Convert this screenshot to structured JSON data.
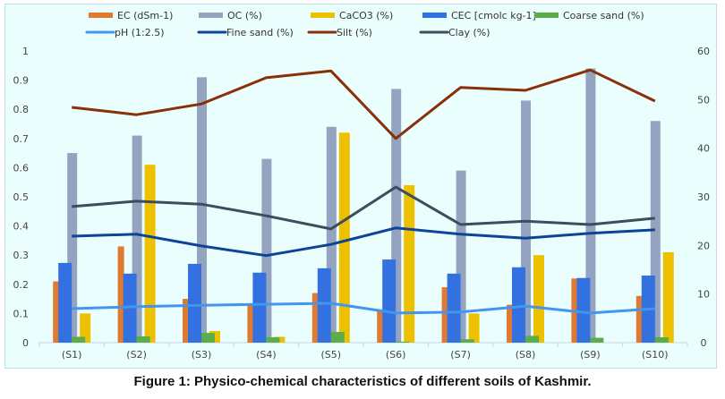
{
  "caption": "Figure 1: Physico-chemical characteristics of different soils of Kashmir.",
  "chart_data": {
    "type": "bar",
    "title": "",
    "xlabel": "",
    "ylabel": "",
    "y2label": "",
    "categories": [
      "(S1)",
      "(S2)",
      "(S3)",
      "(S4)",
      "(S5)",
      "(S6)",
      "(S7)",
      "(S8)",
      "(S9)",
      "(S10)"
    ],
    "ylim": [
      0,
      1
    ],
    "y2lim": [
      0,
      60
    ],
    "yticks": [
      "0",
      "0.1",
      "0.2",
      "0.3",
      "0.4",
      "0.5",
      "0.6",
      "0.7",
      "0.8",
      "0.9",
      "1"
    ],
    "y2ticks": [
      "0",
      "10",
      "20",
      "30",
      "40",
      "50",
      "60"
    ],
    "grid": false,
    "legend_position": "top",
    "series": [
      {
        "name": "EC (dSm-1)",
        "type": "bar",
        "axis": "primary",
        "color": "#e07a30",
        "values": [
          0.21,
          0.33,
          0.15,
          0.13,
          0.17,
          0.11,
          0.19,
          0.13,
          0.22,
          0.16
        ]
      },
      {
        "name": "OC (%)",
        "type": "bar",
        "axis": "primary",
        "color": "#94a4c0",
        "values": [
          0.65,
          0.71,
          0.91,
          0.63,
          0.74,
          0.87,
          0.59,
          0.83,
          0.94,
          0.76
        ]
      },
      {
        "name": "CaCO3 (%)",
        "type": "bar",
        "axis": "primary",
        "color": "#eec100",
        "values": [
          0.1,
          0.61,
          0.04,
          0.02,
          0.72,
          0.54,
          0.1,
          0.3,
          0.0,
          0.31
        ]
      },
      {
        "name": "CEC [cmolc kg-1]",
        "type": "bar",
        "axis": "secondary",
        "color": "#3370e0",
        "values": [
          16.4,
          14.2,
          16.2,
          14.4,
          15.3,
          17.1,
          14.2,
          15.5,
          13.3,
          13.8
        ]
      },
      {
        "name": "Coarse sand (%)",
        "type": "bar",
        "axis": "secondary",
        "color": "#5cad4a",
        "values": [
          1.2,
          1.3,
          2.0,
          1.1,
          2.2,
          0.2,
          0.7,
          1.4,
          1.0,
          1.1
        ]
      },
      {
        "name": "pH (1:2.5)",
        "type": "line",
        "axis": "secondary",
        "color": "#4495ee",
        "values": [
          7.0,
          7.4,
          7.7,
          7.9,
          8.1,
          6.1,
          6.3,
          7.5,
          6.1,
          7.0
        ]
      },
      {
        "name": "Fine sand (%)",
        "type": "line",
        "axis": "secondary",
        "color": "#0c4496",
        "values": [
          21.9,
          22.3,
          19.9,
          17.9,
          20.2,
          23.6,
          22.3,
          21.5,
          22.5,
          23.2
        ]
      },
      {
        "name": "Silt (%)",
        "type": "line",
        "axis": "secondary",
        "color": "#8a3008",
        "values": [
          48.4,
          46.9,
          49.1,
          54.5,
          55.9,
          42.0,
          52.5,
          51.9,
          56.1,
          49.7
        ]
      },
      {
        "name": "Clay (%)",
        "type": "line",
        "axis": "secondary",
        "color": "#404c5e",
        "values": [
          28.0,
          29.1,
          28.5,
          26.1,
          23.4,
          32.0,
          24.3,
          25.0,
          24.3,
          25.6
        ]
      }
    ]
  }
}
